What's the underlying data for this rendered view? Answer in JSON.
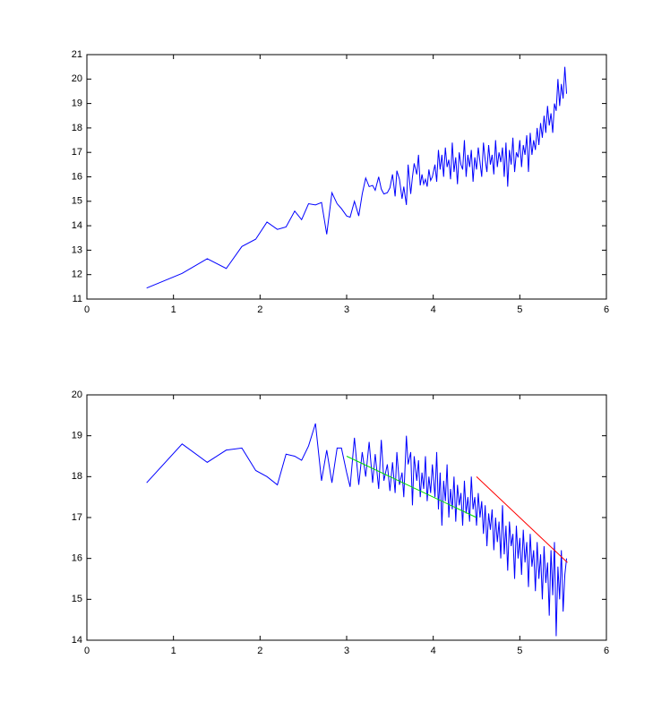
{
  "chart_data": [
    {
      "type": "line",
      "x": [
        0.69,
        1.1,
        1.39,
        1.61,
        1.79,
        1.95,
        2.08,
        2.2,
        2.3,
        2.4,
        2.48,
        2.56,
        2.64,
        2.71,
        2.77,
        2.83,
        2.89,
        2.94,
        3.0,
        3.04,
        3.09,
        3.14,
        3.18,
        3.22,
        3.26,
        3.3,
        3.33,
        3.37,
        3.4,
        3.43,
        3.47,
        3.5,
        3.53,
        3.56,
        3.58,
        3.61,
        3.64,
        3.66,
        3.69,
        3.71,
        3.74,
        3.76,
        3.78,
        3.81,
        3.83,
        3.85,
        3.87,
        3.89,
        3.91,
        3.93,
        3.95,
        3.97,
        3.99,
        4.02,
        4.04,
        4.06,
        4.08,
        4.1,
        4.12,
        4.14,
        4.16,
        4.18,
        4.2,
        4.22,
        4.24,
        4.26,
        4.28,
        4.3,
        4.32,
        4.34,
        4.36,
        4.38,
        4.4,
        4.42,
        4.44,
        4.46,
        4.48,
        4.5,
        4.52,
        4.54,
        4.56,
        4.58,
        4.6,
        4.62,
        4.64,
        4.66,
        4.68,
        4.7,
        4.72,
        4.74,
        4.76,
        4.78,
        4.8,
        4.82,
        4.84,
        4.86,
        4.88,
        4.9,
        4.92,
        4.94,
        4.96,
        4.98,
        5.0,
        5.02,
        5.04,
        5.06,
        5.08,
        5.1,
        5.12,
        5.14,
        5.16,
        5.18,
        5.2,
        5.22,
        5.24,
        5.26,
        5.28,
        5.3,
        5.32,
        5.34,
        5.36,
        5.38,
        5.4,
        5.42,
        5.44,
        5.46,
        5.48,
        5.5,
        5.52,
        5.54
      ],
      "series": [
        {
          "color": "#0000ff",
          "values": [
            11.45,
            12.05,
            12.65,
            12.25,
            13.15,
            13.45,
            14.15,
            13.85,
            13.95,
            14.6,
            14.25,
            14.9,
            14.85,
            14.95,
            13.65,
            15.35,
            14.9,
            14.7,
            14.4,
            14.35,
            15.0,
            14.4,
            15.3,
            15.95,
            15.6,
            15.65,
            15.45,
            16.0,
            15.5,
            15.3,
            15.35,
            15.55,
            16.1,
            15.2,
            16.25,
            15.9,
            15.1,
            15.6,
            14.85,
            16.5,
            15.3,
            16.0,
            16.55,
            16.1,
            16.9,
            15.65,
            16.1,
            15.7,
            15.9,
            15.6,
            16.3,
            15.85,
            16.0,
            16.5,
            15.8,
            17.1,
            16.3,
            16.9,
            16.0,
            17.2,
            16.4,
            16.7,
            15.9,
            17.4,
            16.2,
            16.8,
            15.7,
            17.0,
            16.5,
            16.3,
            17.5,
            16.0,
            16.9,
            16.4,
            17.1,
            15.8,
            16.8,
            16.3,
            17.2,
            16.6,
            16.0,
            17.4,
            16.7,
            16.2,
            17.3,
            16.5,
            16.9,
            16.1,
            17.5,
            16.4,
            17.0,
            16.6,
            17.2,
            16.0,
            17.4,
            15.6,
            17.1,
            16.5,
            17.6,
            16.2,
            17.0,
            16.8,
            17.5,
            16.4,
            17.3,
            16.9,
            17.7,
            16.2,
            17.8,
            16.9,
            17.5,
            17.1,
            18.0,
            17.3,
            18.2,
            17.6,
            18.5,
            17.8,
            18.9,
            18.1,
            18.6,
            17.8,
            19.0,
            18.7,
            20.0,
            18.9,
            19.8,
            19.2,
            20.5,
            19.4
          ]
        }
      ],
      "xlim": [
        0,
        6
      ],
      "xticks": [
        0,
        1,
        2,
        3,
        4,
        5,
        6
      ],
      "ylim": [
        11,
        21
      ],
      "yticks": [
        11,
        12,
        13,
        14,
        15,
        16,
        17,
        18,
        19,
        20,
        21
      ]
    },
    {
      "type": "line",
      "x": [
        0.69,
        1.1,
        1.39,
        1.61,
        1.79,
        1.95,
        2.08,
        2.2,
        2.3,
        2.4,
        2.48,
        2.56,
        2.64,
        2.71,
        2.77,
        2.83,
        2.89,
        2.94,
        3.0,
        3.04,
        3.09,
        3.14,
        3.18,
        3.22,
        3.26,
        3.3,
        3.33,
        3.37,
        3.4,
        3.43,
        3.47,
        3.5,
        3.53,
        3.56,
        3.58,
        3.61,
        3.64,
        3.66,
        3.69,
        3.71,
        3.74,
        3.76,
        3.78,
        3.81,
        3.83,
        3.85,
        3.87,
        3.89,
        3.91,
        3.93,
        3.95,
        3.97,
        3.99,
        4.02,
        4.04,
        4.06,
        4.08,
        4.1,
        4.12,
        4.14,
        4.16,
        4.18,
        4.2,
        4.22,
        4.24,
        4.26,
        4.28,
        4.3,
        4.32,
        4.34,
        4.36,
        4.38,
        4.4,
        4.42,
        4.44,
        4.46,
        4.48,
        4.5,
        4.52,
        4.54,
        4.56,
        4.58,
        4.6,
        4.62,
        4.64,
        4.66,
        4.68,
        4.7,
        4.72,
        4.74,
        4.76,
        4.78,
        4.8,
        4.82,
        4.84,
        4.86,
        4.88,
        4.9,
        4.92,
        4.94,
        4.96,
        4.98,
        5.0,
        5.02,
        5.04,
        5.06,
        5.08,
        5.1,
        5.12,
        5.14,
        5.16,
        5.18,
        5.2,
        5.22,
        5.24,
        5.26,
        5.28,
        5.3,
        5.32,
        5.34,
        5.36,
        5.38,
        5.4,
        5.42,
        5.44,
        5.46,
        5.48,
        5.5,
        5.52,
        5.54
      ],
      "series": [
        {
          "color": "#0000ff",
          "values": [
            17.85,
            18.8,
            18.35,
            18.65,
            18.7,
            18.15,
            18.0,
            17.8,
            18.55,
            18.5,
            18.4,
            18.75,
            19.3,
            17.9,
            18.65,
            17.85,
            18.7,
            18.7,
            18.1,
            17.75,
            18.95,
            17.8,
            18.6,
            18.0,
            18.85,
            17.85,
            18.55,
            17.7,
            18.9,
            17.9,
            18.3,
            17.65,
            18.35,
            17.6,
            18.6,
            17.8,
            18.1,
            17.5,
            19.0,
            18.3,
            18.6,
            17.3,
            18.5,
            17.9,
            18.4,
            17.5,
            18.1,
            17.7,
            18.5,
            17.4,
            18.0,
            17.6,
            18.3,
            17.5,
            18.6,
            17.2,
            18.1,
            16.8,
            17.9,
            17.4,
            18.3,
            17.0,
            17.7,
            17.2,
            18.0,
            16.9,
            17.8,
            17.3,
            17.6,
            16.8,
            17.9,
            17.1,
            17.5,
            16.9,
            18.0,
            17.2,
            17.5,
            16.8,
            17.6,
            17.0,
            17.4,
            16.6,
            17.3,
            16.3,
            17.1,
            16.7,
            17.2,
            16.2,
            17.0,
            16.4,
            16.9,
            16.0,
            17.3,
            16.1,
            16.8,
            15.7,
            16.9,
            16.3,
            16.6,
            15.5,
            16.8,
            16.0,
            16.5,
            15.6,
            16.7,
            15.9,
            16.4,
            15.3,
            16.6,
            15.8,
            16.2,
            15.2,
            16.4,
            15.5,
            16.1,
            15.0,
            16.3,
            15.4,
            15.9,
            14.6,
            16.2,
            15.1,
            16.4,
            14.1,
            15.8,
            15.0,
            16.2,
            14.7,
            15.6,
            16.0
          ]
        },
        {
          "color": "#00dd00",
          "x": [
            3.0,
            4.5
          ],
          "values": [
            18.5,
            17.0
          ]
        },
        {
          "color": "#ff0000",
          "x": [
            4.5,
            5.55
          ],
          "values": [
            18.0,
            15.9
          ]
        }
      ],
      "xlim": [
        0,
        6
      ],
      "xticks": [
        0,
        1,
        2,
        3,
        4,
        5,
        6
      ],
      "ylim": [
        14,
        20
      ],
      "yticks": [
        14,
        15,
        16,
        17,
        18,
        19,
        20
      ]
    }
  ]
}
